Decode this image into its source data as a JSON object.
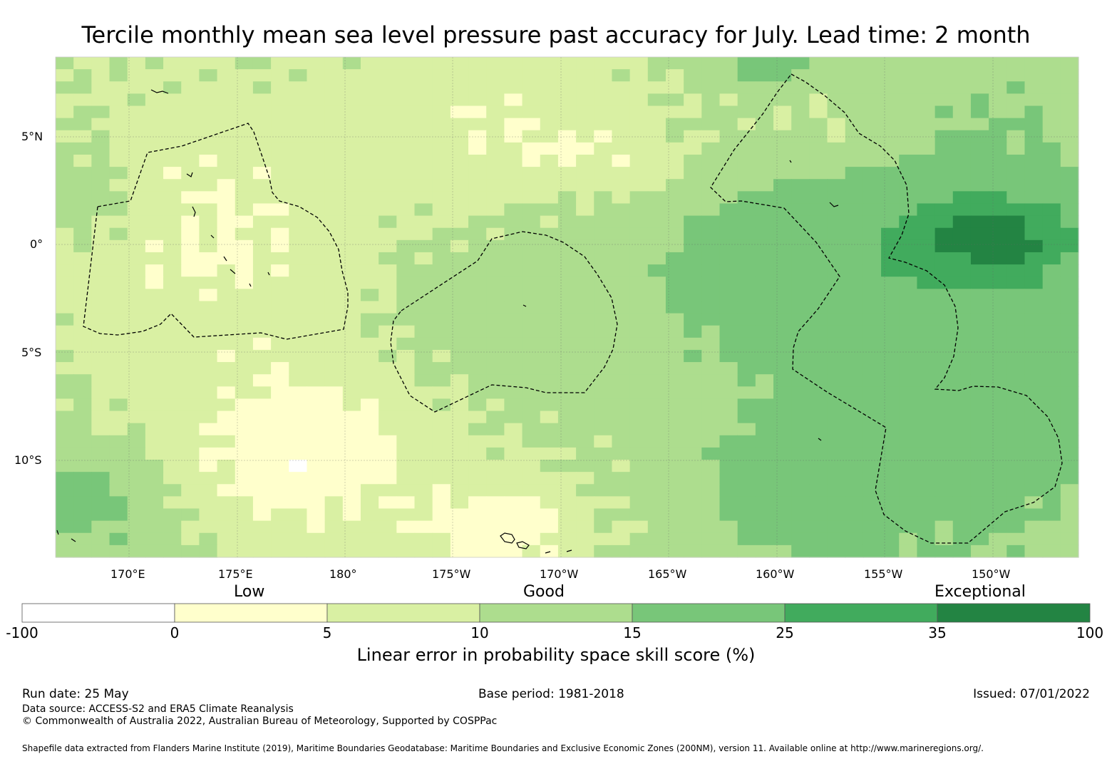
{
  "title": "Tercile monthly mean sea level pressure past accuracy for July. Lead time: 2 month",
  "map": {
    "lon_labels": [
      "170°E",
      "175°E",
      "180°",
      "175°W",
      "170°W",
      "165°W",
      "160°W",
      "155°W",
      "150°W"
    ],
    "lat_labels": [
      "5°N",
      "0°",
      "5°S",
      "10°S"
    ],
    "legend_colors": {
      "-100 to 0": "#ffffff",
      "0 to 5": "#ffffcc",
      "5 to 10": "#d9f0a3",
      "10 to 15": "#addd8e",
      "15 to 25": "#78c679",
      "25 to 35": "#41ab5d",
      "35 to 100": "#238443"
    }
  },
  "colorbar": {
    "category_low": "Low",
    "category_good": "Good",
    "category_exceptional": "Exceptional",
    "ticks": [
      "-100",
      "0",
      "5",
      "10",
      "15",
      "25",
      "35",
      "100"
    ],
    "label": "Linear error in probability space skill score (%)"
  },
  "footer": {
    "run_date": "Run date: 25 May",
    "base_period": "Base period: 1981-2018",
    "issued": "Issued: 07/01/2022",
    "data_source": "Data source: ACCESS-S2 and ERA5 Climate Reanalysis",
    "copyright": "© Commonwealth of Australia 2022, Australian Bureau of Meteorology, Supported by COSPPac",
    "shapefile": "Shapefile data extracted from Flanders Marine Institute (2019), Maritime Boundaries Geodatabase: Maritime Boundaries and Exclusive Economic Zones (200NM), version 11. Available online at http://www.marineregions.org/."
  }
}
